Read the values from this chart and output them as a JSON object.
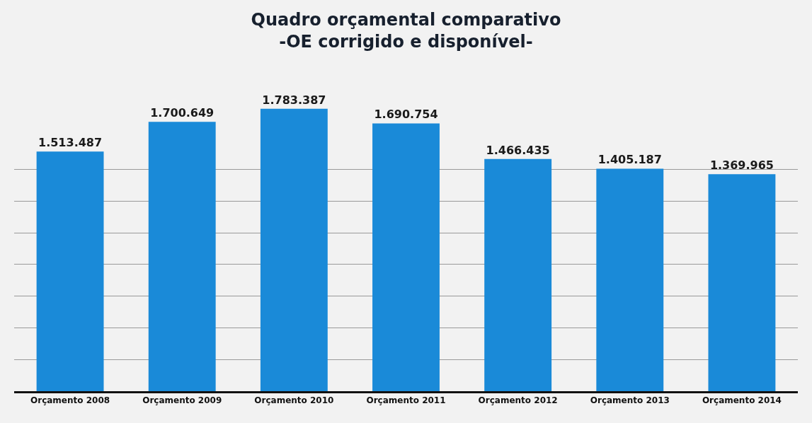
{
  "chart_data": {
    "type": "bar",
    "title": "Quadro orçamental comparativo\n-OE corrigido e disponível-",
    "categories": [
      "Orçamento 2008",
      "Orçamento 2009",
      "Orçamento 2010",
      "Orçamento 2011",
      "Orçamento 2012",
      "Orçamento 2013",
      "Orçamento 2014"
    ],
    "values": [
      1513487,
      1700649,
      1783387,
      1690754,
      1466435,
      1405187,
      1369965
    ],
    "value_labels": [
      "1.513.487",
      "1.700.649",
      "1.783.387",
      "1.690.754",
      "1.466.435",
      "1.405.187",
      "1.369.965"
    ],
    "color": "#1a8ad8",
    "ylim": [
      0,
      1800000
    ],
    "yticks": [
      {
        "value": 0,
        "label": null
      },
      {
        "value": 200000,
        "label": null
      },
      {
        "value": 400000,
        "label": null
      },
      {
        "value": 600000,
        "label": null
      },
      {
        "value": 800000,
        "label": null
      },
      {
        "value": 1000000,
        "label": null
      },
      {
        "value": 1200000,
        "label": null
      },
      {
        "value": 1400000,
        "label": null
      }
    ],
    "tick_labels": "x",
    "grid": "y"
  }
}
